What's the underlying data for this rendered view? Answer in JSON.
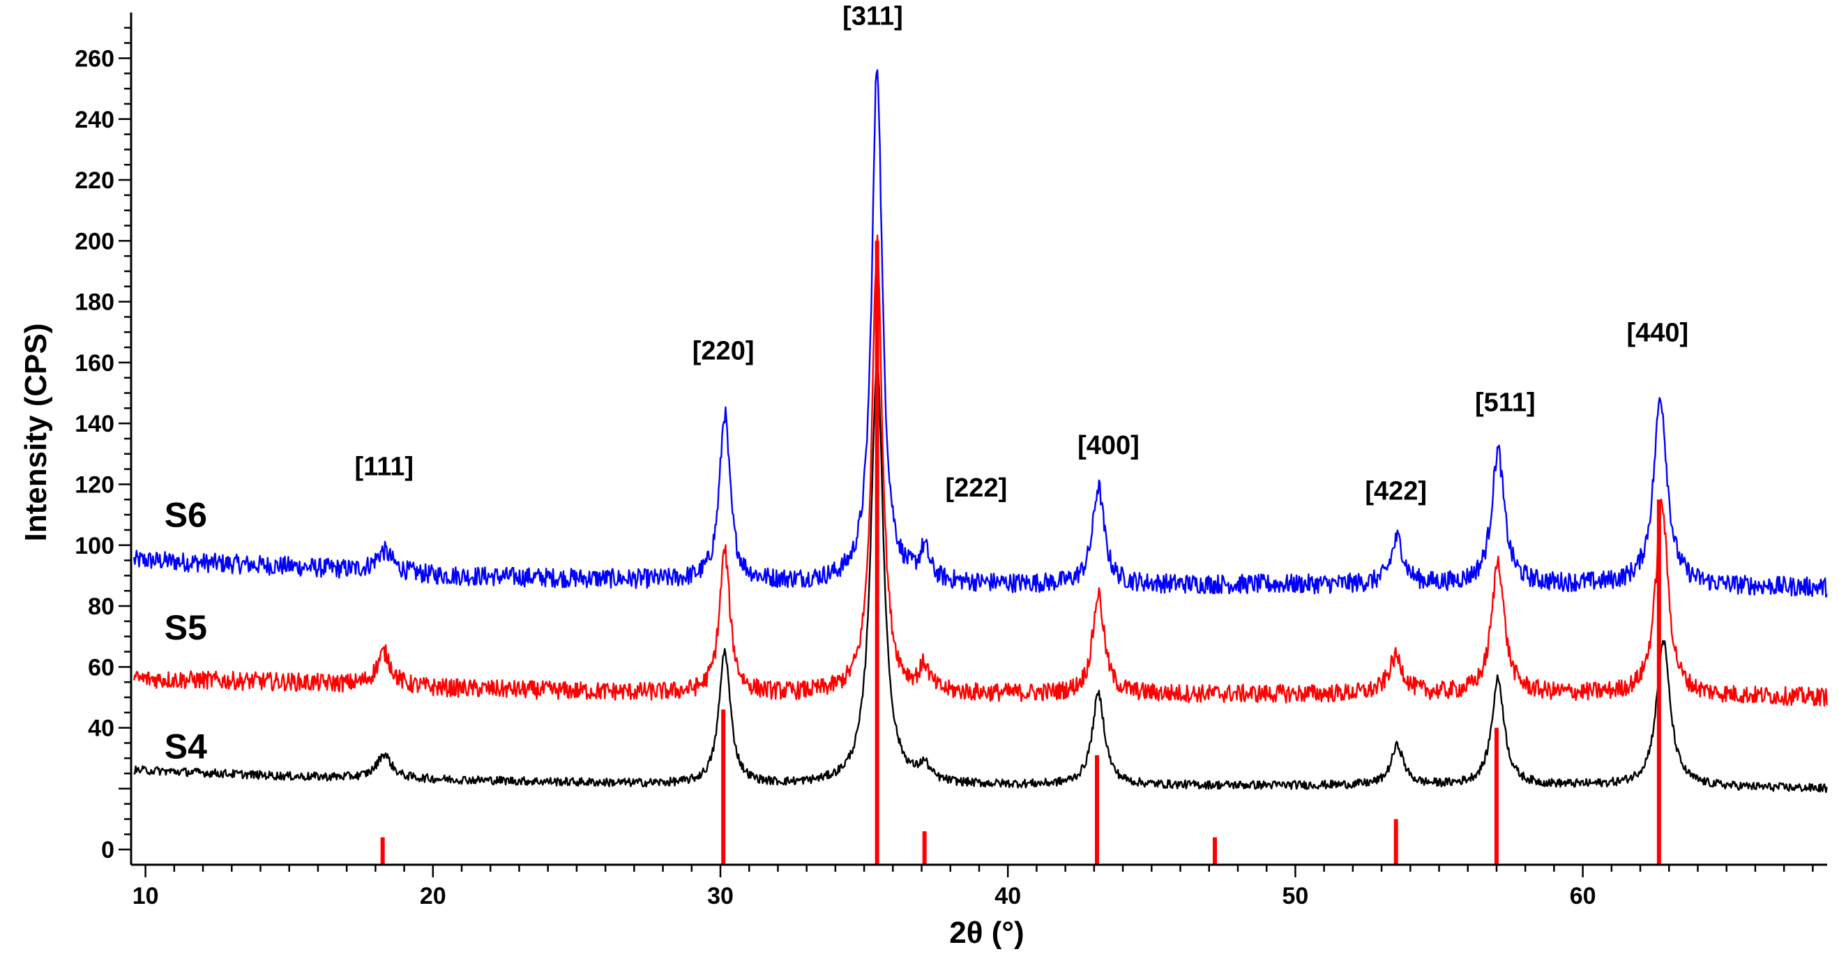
{
  "chart_data": {
    "type": "line",
    "title": "",
    "xlabel": "2θ (°)",
    "ylabel": "Intensity (CPS)",
    "xlim": [
      9.5,
      68.5
    ],
    "ylim": [
      -5,
      275
    ],
    "x_ticks": [
      10,
      20,
      30,
      40,
      50,
      60
    ],
    "y_ticks": [
      0,
      40,
      60,
      80,
      100,
      120,
      140,
      160,
      180,
      200,
      220,
      240,
      260
    ],
    "grid": false,
    "legend": "none",
    "series": [
      {
        "name": "S6",
        "color": "#0000ff",
        "baseline": [
          [
            10,
            95
          ],
          [
            15,
            93
          ],
          [
            20,
            90
          ],
          [
            25,
            89
          ],
          [
            30,
            88
          ],
          [
            40,
            87
          ],
          [
            50,
            87
          ],
          [
            60,
            87
          ],
          [
            68.5,
            86
          ]
        ],
        "noise": 3.2,
        "peaks": [
          {
            "x": 18.3,
            "height": 7,
            "width": 0.35
          },
          {
            "x": 30.15,
            "height": 55,
            "width": 0.22
          },
          {
            "x": 35.45,
            "height": 170,
            "width": 0.22
          },
          {
            "x": 37.1,
            "height": 10,
            "width": 0.2
          },
          {
            "x": 43.15,
            "height": 32,
            "width": 0.24
          },
          {
            "x": 53.55,
            "height": 15,
            "width": 0.26
          },
          {
            "x": 57.05,
            "height": 44,
            "width": 0.26
          },
          {
            "x": 62.7,
            "height": 62,
            "width": 0.28
          }
        ]
      },
      {
        "name": "S5",
        "color": "#ff0000",
        "baseline": [
          [
            10,
            56
          ],
          [
            15,
            55
          ],
          [
            20,
            53
          ],
          [
            25,
            52
          ],
          [
            30,
            51
          ],
          [
            40,
            51
          ],
          [
            50,
            51
          ],
          [
            60,
            51
          ],
          [
            68.5,
            50
          ]
        ],
        "noise": 3.0,
        "peaks": [
          {
            "x": 18.3,
            "height": 11,
            "width": 0.3
          },
          {
            "x": 30.15,
            "height": 47,
            "width": 0.22
          },
          {
            "x": 35.45,
            "height": 148,
            "width": 0.22
          },
          {
            "x": 37.1,
            "height": 8,
            "width": 0.2
          },
          {
            "x": 43.15,
            "height": 33,
            "width": 0.24
          },
          {
            "x": 53.5,
            "height": 12,
            "width": 0.3
          },
          {
            "x": 57.05,
            "height": 44,
            "width": 0.26
          },
          {
            "x": 62.75,
            "height": 63,
            "width": 0.26
          }
        ]
      },
      {
        "name": "S4",
        "color": "#000000",
        "baseline": [
          [
            10,
            26
          ],
          [
            15,
            24
          ],
          [
            20,
            23
          ],
          [
            25,
            22
          ],
          [
            30,
            21
          ],
          [
            40,
            21
          ],
          [
            50,
            21
          ],
          [
            60,
            21
          ],
          [
            68.5,
            20
          ]
        ],
        "noise": 1.4,
        "peaks": [
          {
            "x": 18.3,
            "height": 8,
            "width": 0.3
          },
          {
            "x": 30.15,
            "height": 44,
            "width": 0.24
          },
          {
            "x": 35.45,
            "height": 140,
            "width": 0.26
          },
          {
            "x": 37.1,
            "height": 5,
            "width": 0.22
          },
          {
            "x": 43.15,
            "height": 30,
            "width": 0.26
          },
          {
            "x": 53.55,
            "height": 13,
            "width": 0.26
          },
          {
            "x": 57.05,
            "height": 35,
            "width": 0.26
          },
          {
            "x": 62.8,
            "height": 48,
            "width": 0.28
          }
        ]
      }
    ],
    "reference_lines": {
      "color": "#ff0000",
      "lines": [
        {
          "x": 18.25,
          "top": 0
        },
        {
          "x": 30.1,
          "top": 46
        },
        {
          "x": 35.45,
          "top": 200
        },
        {
          "x": 37.1,
          "top": 6
        },
        {
          "x": 43.1,
          "top": 31
        },
        {
          "x": 47.2,
          "top": 1
        },
        {
          "x": 53.5,
          "top": 10
        },
        {
          "x": 57.0,
          "top": 40
        },
        {
          "x": 62.65,
          "top": 115
        }
      ]
    },
    "peak_labels": [
      {
        "text": "[111]",
        "x": 18.3,
        "y": 123
      },
      {
        "text": "[220]",
        "x": 30.1,
        "y": 161
      },
      {
        "text": "[311]",
        "x": 35.3,
        "y": 271
      },
      {
        "text": "[222]",
        "x": 38.9,
        "y": 116
      },
      {
        "text": "[400]",
        "x": 43.5,
        "y": 130
      },
      {
        "text": "[422]",
        "x": 53.5,
        "y": 115
      },
      {
        "text": "[511]",
        "x": 57.3,
        "y": 144
      },
      {
        "text": "[440]",
        "x": 62.6,
        "y": 167
      }
    ],
    "sample_labels": [
      {
        "text": "S6",
        "x": 11.4,
        "y": 106
      },
      {
        "text": "S5",
        "x": 11.4,
        "y": 69
      },
      {
        "text": "S4",
        "x": 11.4,
        "y": 30
      }
    ]
  }
}
